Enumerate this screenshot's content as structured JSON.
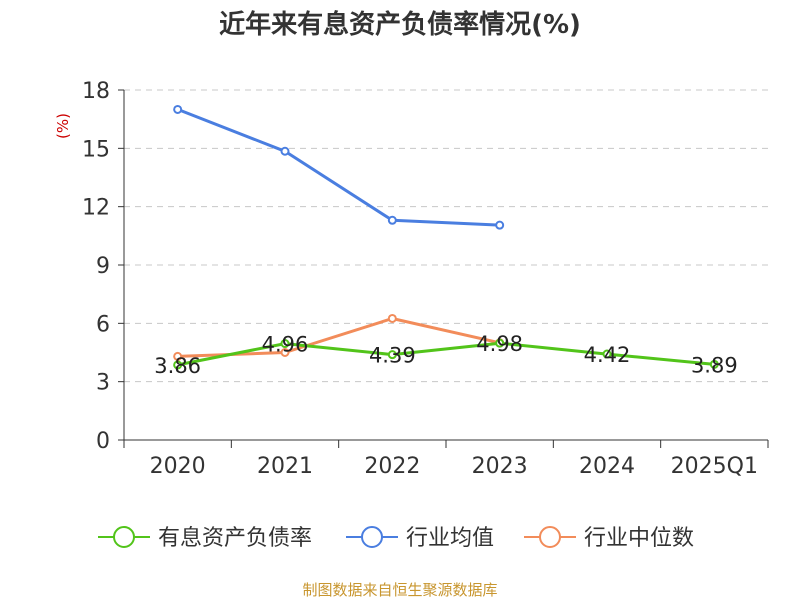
{
  "chart_data": {
    "type": "line",
    "title": "近年来有息资产负债率情况(%)",
    "ylabel": "(%)",
    "categories": [
      "2020",
      "2021",
      "2022",
      "2023",
      "2024",
      "2025Q1"
    ],
    "ylim": [
      0,
      18
    ],
    "yticks": [
      0,
      3,
      6,
      9,
      12,
      15,
      18
    ],
    "grid": true,
    "legend_position": "bottom",
    "series": [
      {
        "name": "有息资产负债率",
        "color": "#52c41a",
        "values": [
          3.86,
          4.96,
          4.39,
          4.98,
          4.42,
          3.89
        ],
        "labels": [
          "3.86",
          "4.96",
          "4.39",
          "4.98",
          "4.42",
          "3.89"
        ]
      },
      {
        "name": "行业均值",
        "color": "#4a7ee0",
        "values": [
          17.0,
          14.85,
          11.3,
          11.05,
          null,
          null
        ]
      },
      {
        "name": "行业中位数",
        "color": "#f28c5a",
        "values": [
          4.3,
          4.5,
          6.25,
          5.0,
          null,
          null
        ]
      }
    ]
  },
  "footer": {
    "source": "制图数据来自恒生聚源数据库"
  }
}
